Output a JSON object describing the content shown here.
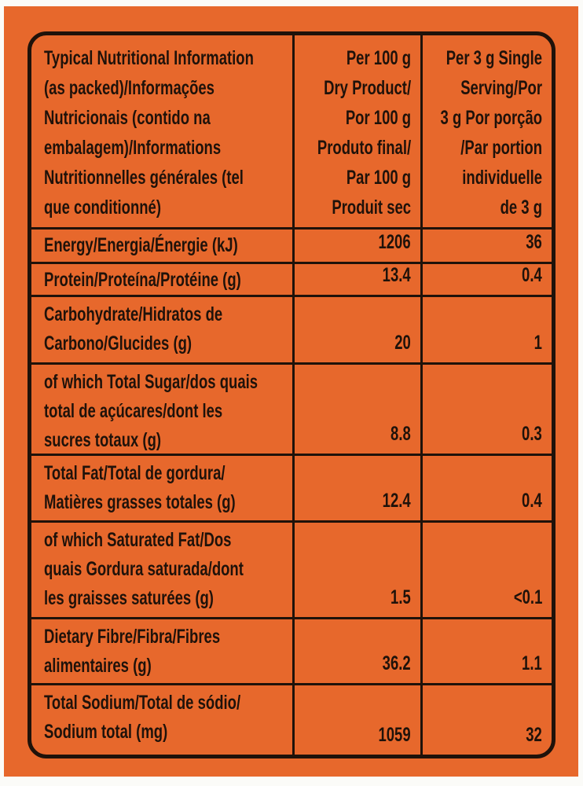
{
  "label": {
    "background_color": "#E7682C",
    "ink_color": "#1F120A",
    "table": {
      "header": {
        "col1": "Typical Nutritional Information\n(as packed)/Informações\nNutricionais (contido na\nembalagem)/Informations\nNutritionnelles générales (tel\nque conditionné)",
        "col2": "Per 100 g\nDry Product/\nPor 100 g\nProduto final/\nPar 100 g\nProduit sec",
        "col3": "Per 3 g Single\nServing/Por\n3 g Por porção\n/Par portion\nindividuelle\nde 3 g"
      },
      "rows": [
        {
          "label": "Energy/Energia/Énergie (kJ)",
          "per_100g": "1206",
          "per_serving": "36"
        },
        {
          "label": "Protein/Proteína/Protéine (g)",
          "per_100g": "13.4",
          "per_serving": "0.4"
        },
        {
          "label": "Carbohydrate/Hidratos de\nCarbono/Glucides (g)",
          "per_100g": "20",
          "per_serving": "1"
        },
        {
          "label": "of which Total Sugar/dos quais\ntotal de açúcares/dont les\nsucres totaux (g)",
          "per_100g": "8.8",
          "per_serving": "0.3"
        },
        {
          "label": "Total Fat/Total de gordura/\nMatières grasses totales (g)",
          "per_100g": "12.4",
          "per_serving": "0.4"
        },
        {
          "label": "of which Saturated Fat/Dos\nquais Gordura saturada/dont\nles graisses saturées (g)",
          "per_100g": "1.5",
          "per_serving": "<0.1"
        },
        {
          "label": "Dietary Fibre/Fibra/Fibres\nalimentaires (g)",
          "per_100g": "36.2",
          "per_serving": "1.1"
        },
        {
          "label": "Total Sodium/Total de sódio/\nSodium total (mg)",
          "per_100g": "1059",
          "per_serving": "32"
        }
      ]
    }
  }
}
